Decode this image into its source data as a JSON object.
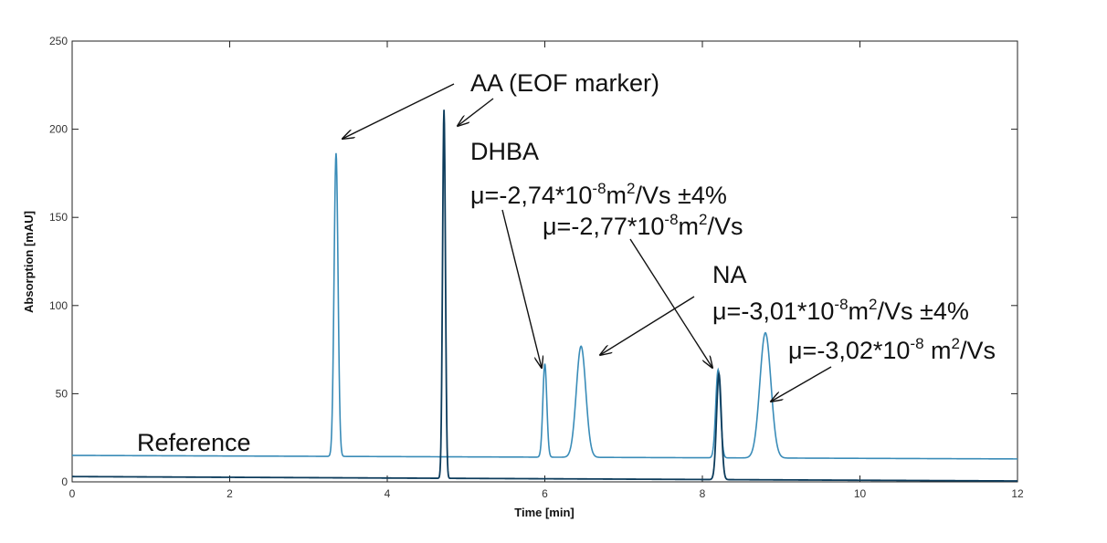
{
  "chart_data": {
    "type": "line",
    "title": "",
    "xlabel": "Time [min]",
    "ylabel": "Absorption [mAU]",
    "xlim": [
      0,
      12
    ],
    "ylim": [
      0,
      250
    ],
    "x_ticks": [
      "0",
      "2",
      "4",
      "6",
      "8",
      "10",
      "12"
    ],
    "y_ticks": [
      "0",
      "50",
      "100",
      "150",
      "200",
      "250"
    ],
    "grid": false,
    "series": [
      {
        "name": "Reference",
        "color": "#3a8cb8",
        "baseline_start": 15,
        "baseline_end": 13,
        "peaks": [
          {
            "t": 3.35,
            "height": 187,
            "width": 0.025
          },
          {
            "t": 6.0,
            "height": 68,
            "width": 0.025
          },
          {
            "t": 6.46,
            "height": 78,
            "width": 0.06
          },
          {
            "t": 8.2,
            "height": 65,
            "width": 0.03
          },
          {
            "t": 8.8,
            "height": 86,
            "width": 0.07
          }
        ]
      },
      {
        "name": "",
        "color": "#0d3c5c",
        "baseline_start": 3,
        "baseline_end": 0.5,
        "peaks": [
          {
            "t": 4.72,
            "height": 212,
            "width": 0.018
          },
          {
            "t": 8.21,
            "height": 63,
            "width": 0.03
          }
        ]
      }
    ],
    "annotations": [
      {
        "id": "aa",
        "text": "AA (EOF marker)"
      },
      {
        "id": "dhba-label",
        "text": "DHBA"
      },
      {
        "id": "dhba-mu1",
        "parts": [
          "μ=-2,74*10",
          "-8",
          "m",
          "2",
          "/Vs ±4%"
        ]
      },
      {
        "id": "dhba-mu2",
        "parts": [
          "μ=-2,77*10",
          "-8",
          "m",
          "2",
          "/Vs"
        ]
      },
      {
        "id": "na-label",
        "text": "NA"
      },
      {
        "id": "na-mu1",
        "parts": [
          "μ=-3,01*10",
          "-8",
          "m",
          "2",
          "/Vs ±4%"
        ]
      },
      {
        "id": "na-mu2",
        "parts": [
          "μ=-3,02*10",
          "-8",
          " m",
          "2",
          "/Vs"
        ]
      },
      {
        "id": "reference",
        "text": "Reference"
      }
    ]
  }
}
